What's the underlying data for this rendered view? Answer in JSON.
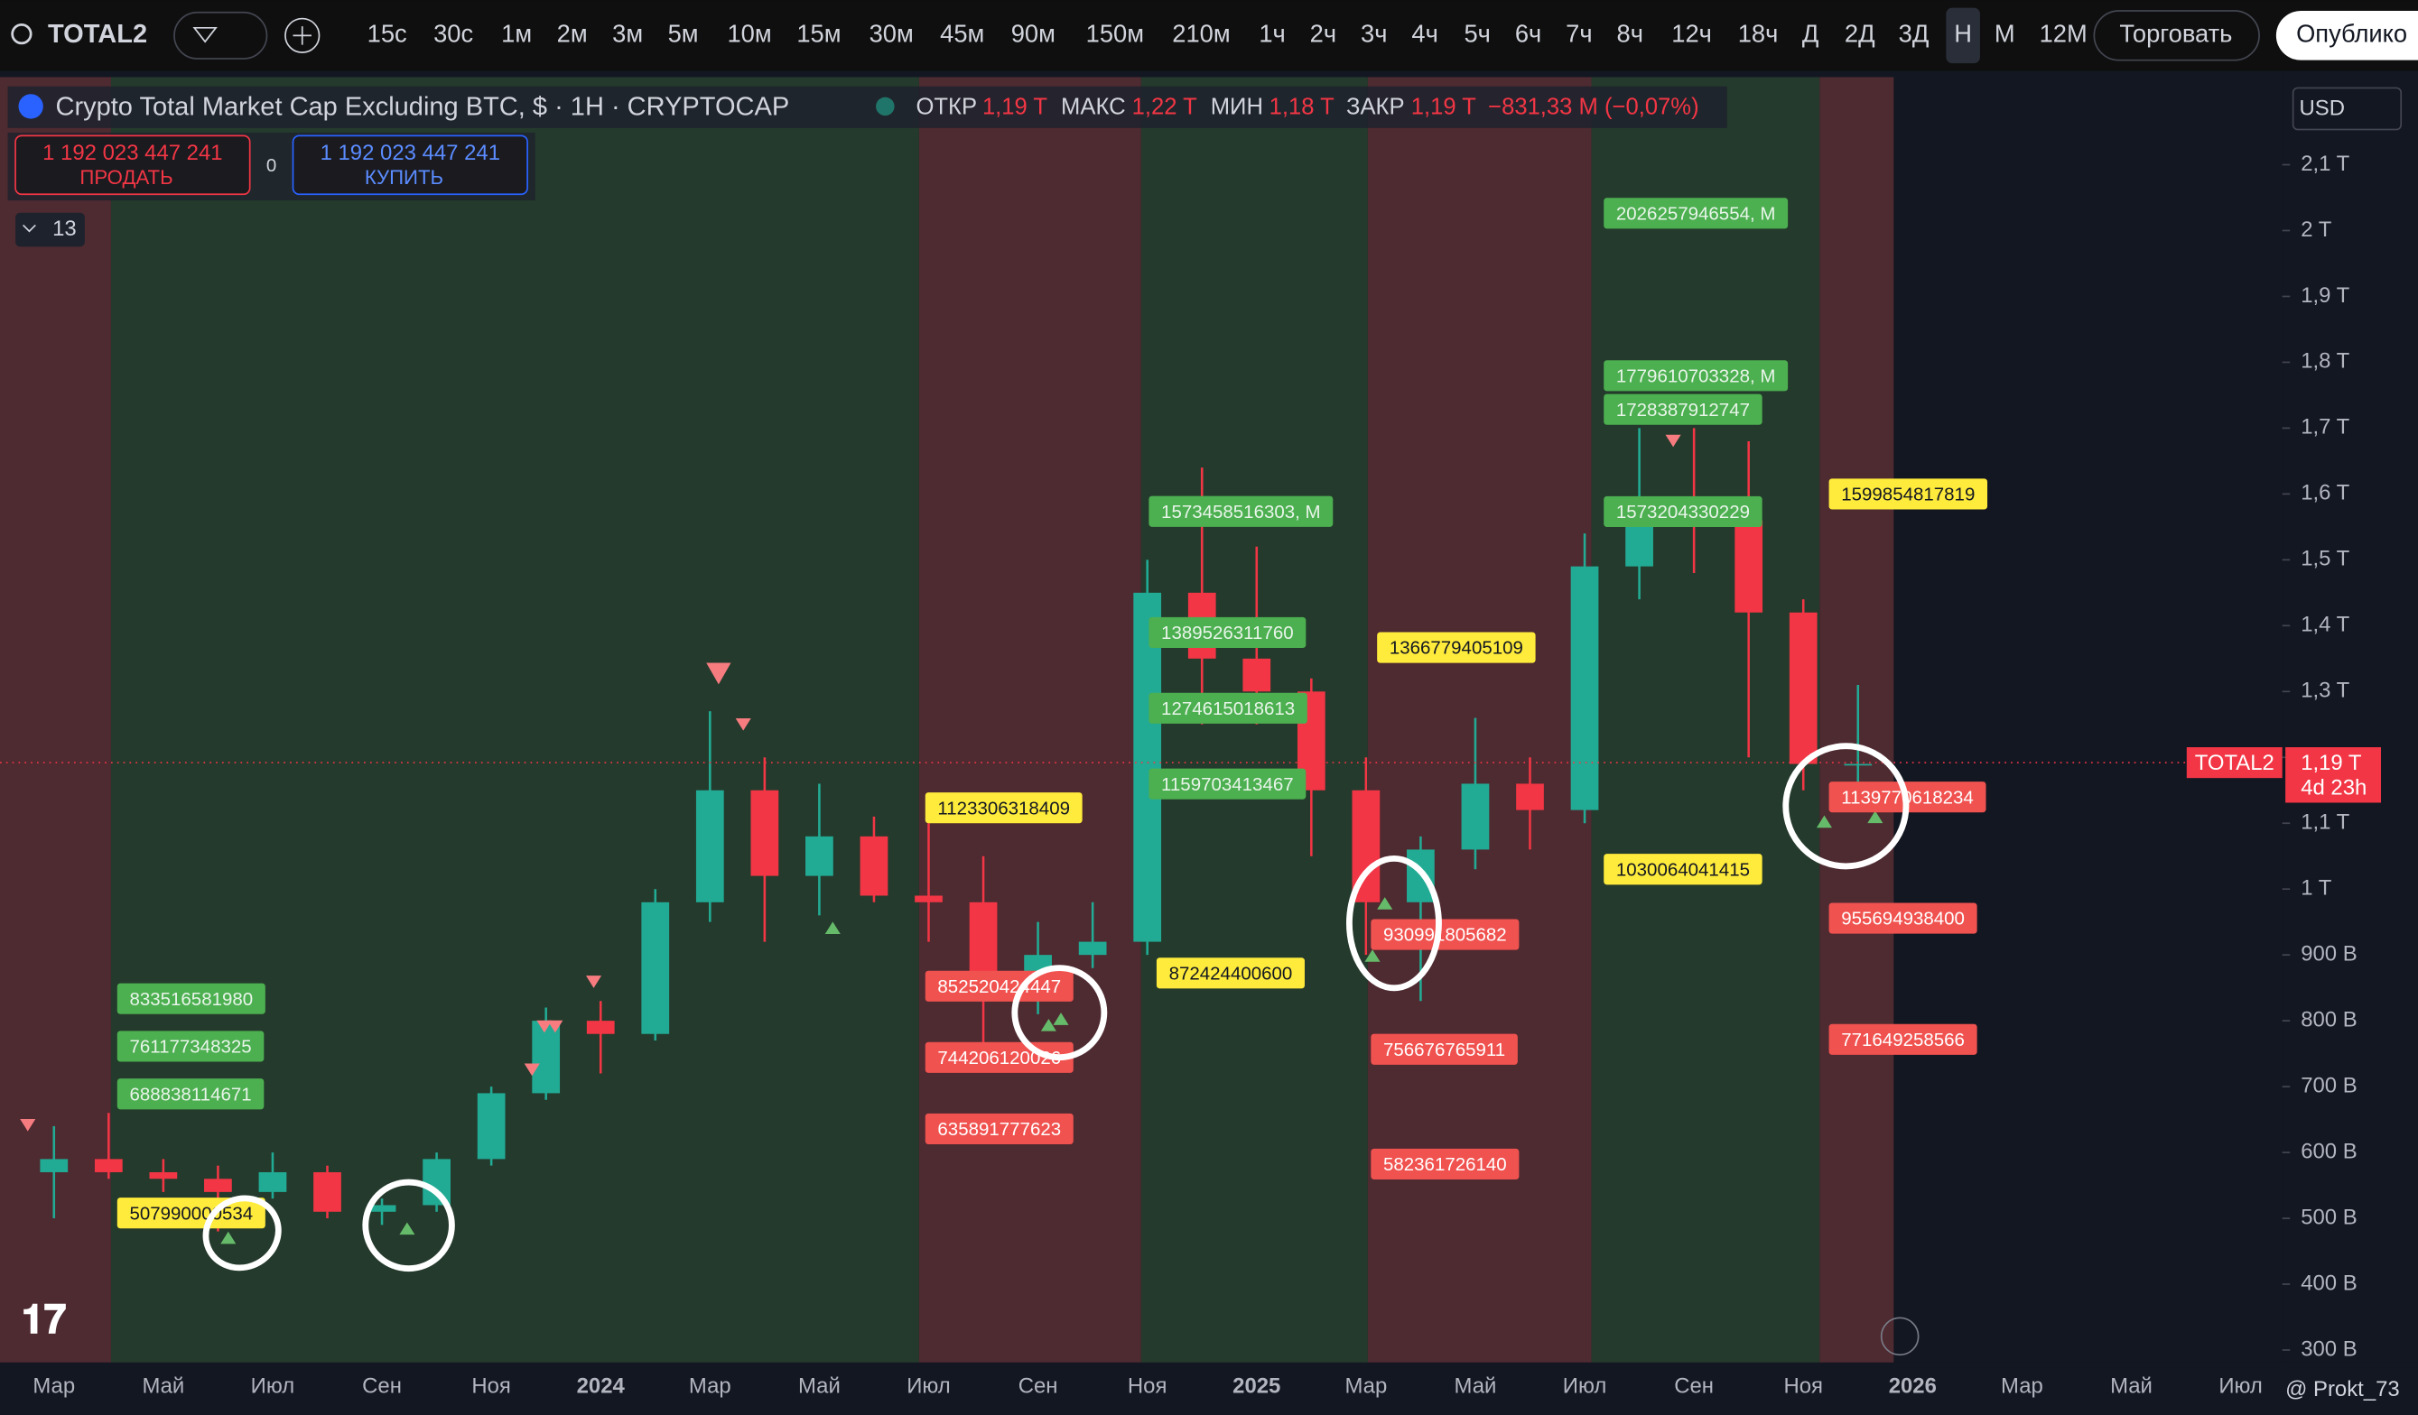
{
  "toolbar": {
    "symbol": "TOTAL2",
    "intervals": [
      "15с",
      "30с",
      "1м",
      "2м",
      "3м",
      "5м",
      "10м",
      "15м",
      "30м",
      "45м",
      "90м",
      "150м",
      "210м",
      "1ч",
      "2ч",
      "3ч",
      "4ч",
      "5ч",
      "6ч",
      "7ч",
      "8ч",
      "12ч",
      "18ч",
      "Д",
      "2Д",
      "3Д",
      "Н",
      "М",
      "12М"
    ],
    "selected": 26,
    "trade": "Торговать",
    "publish": "Опублико"
  },
  "legend": {
    "title": "Crypto Total Market Cap Excluding BTC, $ · 1H · CRYPTOCAP",
    "open_label": "ОТКР",
    "open": "1,19 T",
    "high_label": "МАКС",
    "high": "1,22 T",
    "low_label": "МИН",
    "low": "1,18 T",
    "close_label": "ЗАКР",
    "close": "1,19 T",
    "change": "−831,33 M (−0,07%)",
    "sell_price": "1 192 023 447 241",
    "sell": "ПРОДАТЬ",
    "spread": "0",
    "buy_price": "1 192 023 447 241",
    "buy": "КУПИТЬ",
    "indicators": "13"
  },
  "currency": "USD",
  "watermark": "@ Prokt_73",
  "chart_data": {
    "type": "candlestick",
    "categories": [
      "Мар",
      null,
      "Май",
      null,
      "Июл",
      null,
      "Сен",
      null,
      "Ноя",
      null,
      "2024",
      null,
      "Мар",
      null,
      "Май",
      null,
      "Июл",
      null,
      "Сен",
      null,
      "Ноя",
      null,
      "2025",
      null,
      "Мар",
      null,
      "Май",
      null,
      "Июл",
      null,
      "Сен",
      null,
      "Ноя",
      null,
      "2026",
      null,
      "Мар",
      null,
      "Май",
      null,
      "Июл"
    ],
    "open": [
      570000000000.0,
      590000000000.0,
      570000000000.0,
      560000000000.0,
      540000000000.0,
      570000000000.0,
      510000000000.0,
      520000000000.0,
      590000000000.0,
      690000000000.0,
      800000000000.0,
      780000000000.0,
      980000000000.0,
      1150000000000.0,
      1020000000000.0,
      1080000000000.0,
      990000000000.0,
      980000000000.0,
      850000000000.0,
      900000000000.0,
      920000000000.0,
      1450000000000.0,
      1350000000000.0,
      1300000000000.0,
      1150000000000.0,
      980000000000.0,
      1060000000000.0,
      1160000000000.0,
      1120000000000.0,
      1490000000000.0,
      1580000000000.0,
      1560000000000.0,
      1420000000000.0,
      1190000000000.0,
      null,
      null,
      null,
      null,
      null,
      null,
      null
    ],
    "high": [
      640000000000.0,
      660000000000.0,
      590000000000.0,
      580000000000.0,
      600000000000.0,
      580000000000.0,
      530000000000.0,
      600000000000.0,
      700000000000.0,
      820000000000.0,
      830000000000.0,
      1000000000000.0,
      1270000000000.0,
      1200000000000.0,
      1160000000000.0,
      1110000000000.0,
      1100000000000.0,
      1050000000000.0,
      950000000000.0,
      980000000000.0,
      1500000000000.0,
      1640000000000.0,
      1520000000000.0,
      1320000000000.0,
      1200000000000.0,
      1080000000000.0,
      1260000000000.0,
      1200000000000.0,
      1540000000000.0,
      1700000000000.0,
      1700000000000.0,
      1680000000000.0,
      1440000000000.0,
      1310000000000.0,
      null,
      null,
      null,
      null,
      null,
      null,
      null
    ],
    "low": [
      500000000000.0,
      560000000000.0,
      540000000000.0,
      480000000000.0,
      530000000000.0,
      500000000000.0,
      490000000000.0,
      510000000000.0,
      580000000000.0,
      680000000000.0,
      720000000000.0,
      770000000000.0,
      950000000000.0,
      920000000000.0,
      960000000000.0,
      980000000000.0,
      920000000000.0,
      760000000000.0,
      810000000000.0,
      880000000000.0,
      900000000000.0,
      1250000000000.0,
      1250000000000.0,
      1050000000000.0,
      900000000000.0,
      830000000000.0,
      1030000000000.0,
      1060000000000.0,
      1100000000000.0,
      1440000000000.0,
      1480000000000.0,
      1200000000000.0,
      1150000000000.0,
      1150000000000.0,
      null,
      null,
      null,
      null,
      null,
      null,
      null
    ],
    "close": [
      590000000000.0,
      570000000000.0,
      560000000000.0,
      540000000000.0,
      570000000000.0,
      510000000000.0,
      520000000000.0,
      590000000000.0,
      690000000000.0,
      800000000000.0,
      780000000000.0,
      980000000000.0,
      1150000000000.0,
      1020000000000.0,
      1080000000000.0,
      990000000000.0,
      980000000000.0,
      850000000000.0,
      900000000000.0,
      920000000000.0,
      1450000000000.0,
      1350000000000.0,
      1300000000000.0,
      1150000000000.0,
      980000000000.0,
      1060000000000.0,
      1160000000000.0,
      1120000000000.0,
      1490000000000.0,
      1580000000000.0,
      1560000000000.0,
      1420000000000.0,
      1190000000000.0,
      1190000000000.0,
      null,
      null,
      null,
      null,
      null,
      null,
      null
    ],
    "up_color": "#22ab94",
    "down_color": "#f23645",
    "ylim": [
      281000000000.0,
      2233000000000.0
    ],
    "yticks": [
      {
        "value": 2100000000000.0,
        "label": "2,1 T"
      },
      {
        "value": 2000000000000.0,
        "label": "2 T"
      },
      {
        "value": 1900000000000.0,
        "label": "1,9 T"
      },
      {
        "value": 1800000000000.0,
        "label": "1,8 T"
      },
      {
        "value": 1700000000000.0,
        "label": "1,7 T"
      },
      {
        "value": 1600000000000.0,
        "label": "1,6 T"
      },
      {
        "value": 1500000000000.0,
        "label": "1,5 T"
      },
      {
        "value": 1400000000000.0,
        "label": "1,4 T"
      },
      {
        "value": 1300000000000.0,
        "label": "1,3 T"
      },
      {
        "value": 1200000000000.0,
        "label": "1,2 T"
      },
      {
        "value": 1100000000000.0,
        "label": "1,1 T"
      },
      {
        "value": 1000000000000.0,
        "label": "1 T"
      },
      {
        "value": 900000000000.0,
        "label": "900 B"
      },
      {
        "value": 800000000000.0,
        "label": "800 B"
      },
      {
        "value": 700000000000.0,
        "label": "700 B"
      },
      {
        "value": 600000000000.0,
        "label": "600 B"
      },
      {
        "value": 500000000000.0,
        "label": "500 B"
      },
      {
        "value": 400000000000.0,
        "label": "400 B"
      },
      {
        "value": 300000000000.0,
        "label": "300 B"
      }
    ],
    "price_tag": {
      "symbol": "TOTAL2",
      "value": 1192023447241,
      "label": "1,19 T",
      "countdown": "4d 23h"
    },
    "annotations": [
      {
        "value": 833516581980,
        "label": "833516581980",
        "color": "#4caf50"
      },
      {
        "value": 761177348325,
        "label": "761177348325",
        "color": "#4caf50"
      },
      {
        "value": 688838114671,
        "label": "688838114671",
        "color": "#4caf50"
      },
      {
        "value": 507990000534,
        "label": "507990000534",
        "color": "#ffeb3b"
      },
      {
        "value": 1123306318409,
        "label": "1123306318409",
        "color": "#ffeb3b"
      },
      {
        "value": 852520424447,
        "label": "852520424447",
        "color": "#f0524f"
      },
      {
        "value": 744206120026,
        "label": "744206120026",
        "color": "#f0524f"
      },
      {
        "value": 635891777623,
        "label": "635891777623",
        "color": "#f0524f"
      },
      {
        "value": 1573458516303,
        "label": "1573458516303, M",
        "color": "#4caf50"
      },
      {
        "value": 1389526311760,
        "label": "1389526311760",
        "color": "#4caf50"
      },
      {
        "value": 1274615018613,
        "label": "1274615018613",
        "color": "#4caf50"
      },
      {
        "value": 1159703413467,
        "label": "1159703413467",
        "color": "#4caf50"
      },
      {
        "value": 872424400600,
        "label": "872424400600",
        "color": "#ffeb3b"
      },
      {
        "value": 1366779405109,
        "label": "1366779405109",
        "color": "#ffeb3b"
      },
      {
        "value": 930991805682,
        "label": "930991805682",
        "color": "#f0524f"
      },
      {
        "value": 756676765911,
        "label": "756676765911",
        "color": "#f0524f"
      },
      {
        "value": 582361726140,
        "label": "582361726140",
        "color": "#f0524f"
      },
      {
        "value": 2026257946554,
        "label": "2026257946554, M",
        "color": "#4caf50"
      },
      {
        "value": 1779610703328,
        "label": "1779610703328, M",
        "color": "#4caf50"
      },
      {
        "value": 1728387912747,
        "label": "1728387912747",
        "color": "#4caf50"
      },
      {
        "value": 1573204330229,
        "label": "1573204330229",
        "color": "#4caf50"
      },
      {
        "value": 1030064041415,
        "label": "1030064041415",
        "color": "#ffeb3b"
      },
      {
        "value": 1599854817819,
        "label": "1599854817819",
        "color": "#ffeb3b"
      },
      {
        "value": 1139770618234,
        "label": "1139770618234",
        "color": "#f0524f"
      },
      {
        "value": 955694938400,
        "label": "955694938400",
        "color": "#f0524f"
      },
      {
        "value": 771649258566,
        "label": "771649258566",
        "color": "#f0524f"
      }
    ]
  }
}
